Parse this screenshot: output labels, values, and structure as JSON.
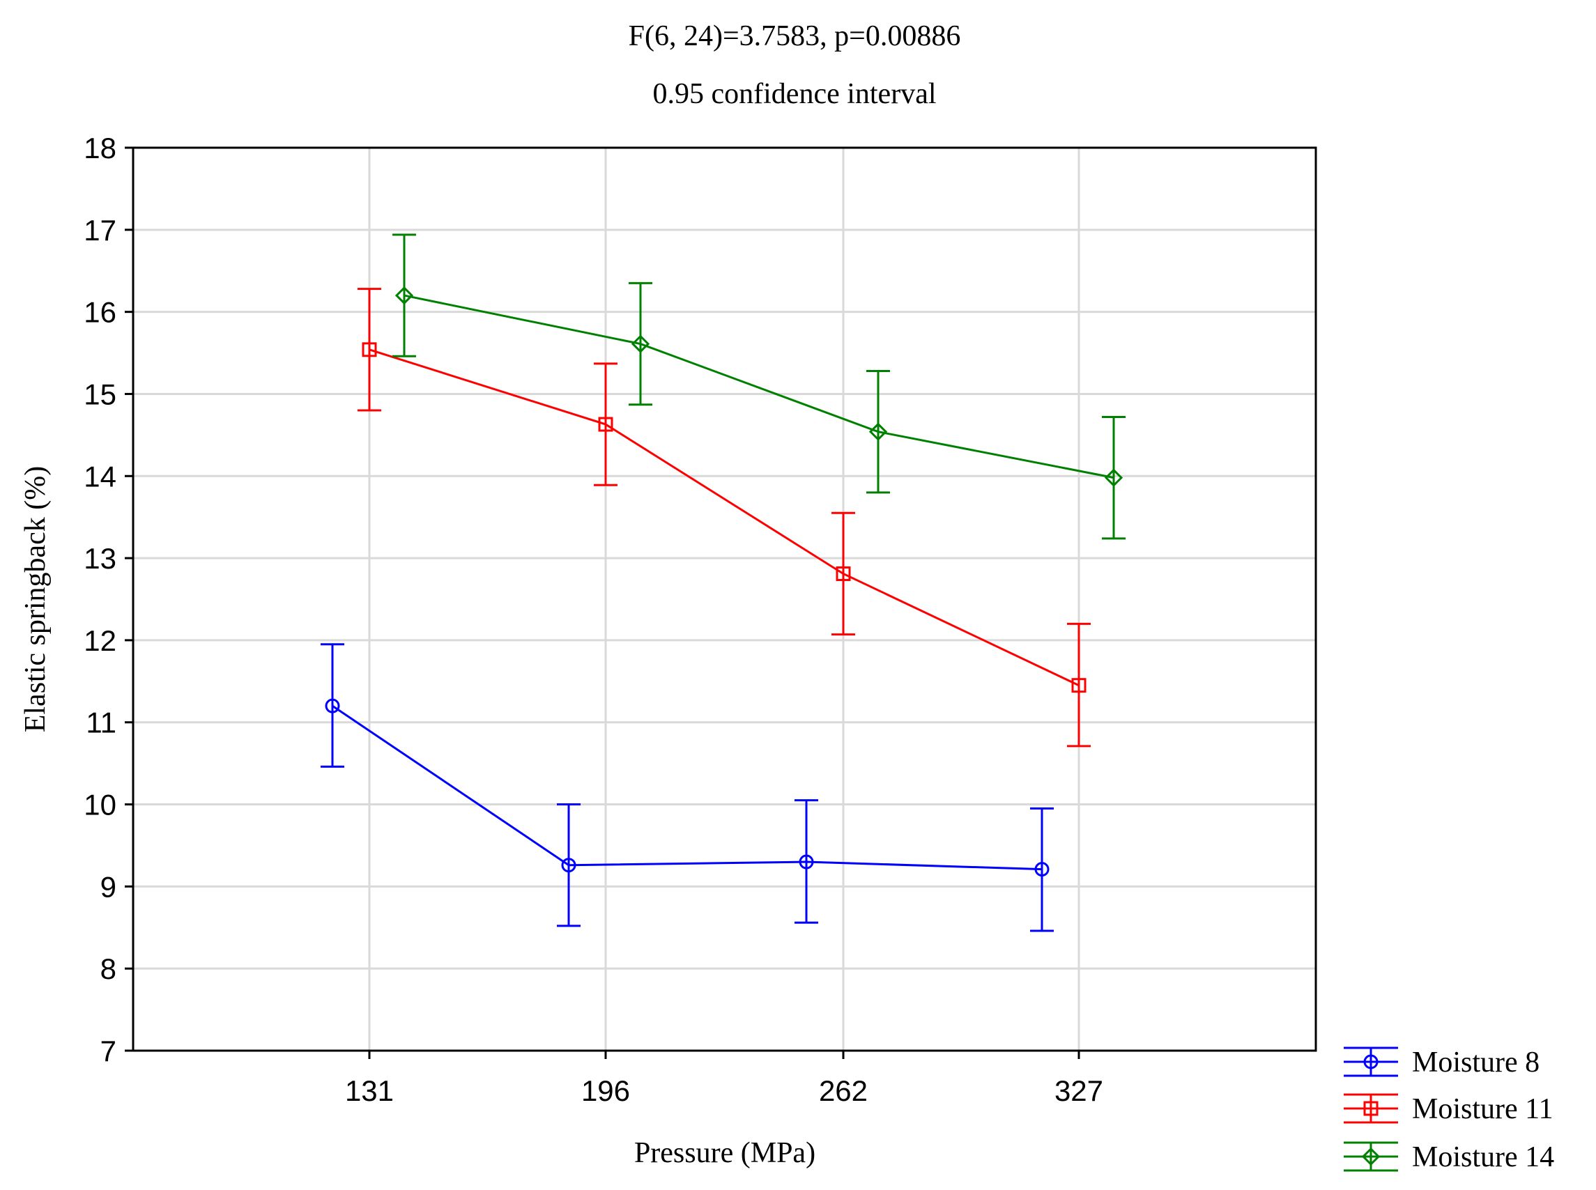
{
  "chart_data": {
    "type": "line",
    "title": "F(6, 24)=3.7583, p=0.00886",
    "subtitle": "0.95 confidence interval",
    "xlabel": "Pressure (MPa)",
    "ylabel": "Elastic springback (%)",
    "categories": [
      "131",
      "196",
      "262",
      "327"
    ],
    "ylim": [
      7,
      18
    ],
    "yticks": [
      7,
      8,
      9,
      10,
      11,
      12,
      13,
      14,
      15,
      16,
      17,
      18
    ],
    "grid": true,
    "error_bars": "0.95 confidence interval",
    "legend_position": "bottom-right outside",
    "series": [
      {
        "name": "Moisture 8",
        "color": "#0000ff",
        "marker": "circle",
        "values": [
          11.2,
          9.26,
          9.3,
          9.21
        ],
        "lower": [
          10.46,
          8.52,
          8.56,
          8.46
        ],
        "upper": [
          11.95,
          10.0,
          10.05,
          9.95
        ]
      },
      {
        "name": "Moisture 11",
        "color": "#ff0000",
        "marker": "square",
        "values": [
          15.54,
          14.63,
          12.81,
          11.45
        ],
        "lower": [
          14.8,
          13.89,
          12.07,
          10.71
        ],
        "upper": [
          16.28,
          15.37,
          13.55,
          12.2
        ]
      },
      {
        "name": "Moisture 14",
        "color": "#008000",
        "marker": "diamond",
        "values": [
          16.2,
          15.61,
          14.54,
          13.98
        ],
        "lower": [
          15.46,
          14.87,
          13.8,
          13.24
        ],
        "upper": [
          16.94,
          16.35,
          15.28,
          14.72
        ]
      }
    ]
  }
}
